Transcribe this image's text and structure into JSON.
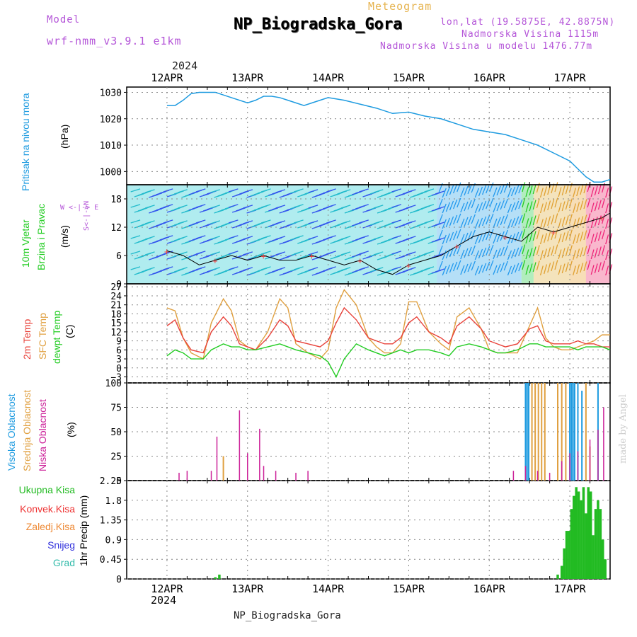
{
  "header": {
    "model_label": "Model",
    "model_name": "wrf-nmm_v3.9.1 e1km",
    "meteogram_label": "Meteogram",
    "station_title": "NP_Biogradska_Gora",
    "coords": "lon,lat (19.5875E, 42.8875N)",
    "elevation": "Nadmorska Visina 1115m",
    "model_elevation": "Nadmorska Visina u modelu 1476.77m",
    "year_top": "2024",
    "year_bottom": "2024",
    "footer_station": "NP_Biogradska_Gora",
    "signature": "made by Angel"
  },
  "axis_days": [
    "12APR",
    "13APR",
    "14APR",
    "15APR",
    "16APR",
    "17APR"
  ],
  "panel_labels": {
    "pressure": {
      "name": "Pritisak na nivou mora",
      "unit": "(hPa)"
    },
    "wind": {
      "name1": "10m Vjetar",
      "name2": "Brzina i Pravac",
      "unit": "(m/s)",
      "compass": "W <-|-> E",
      "compass_v": "S<-|->N"
    },
    "temp": {
      "name1": "2m Temp",
      "name2": "SFC Temp",
      "name3": "dewpt Temp",
      "unit": "(C)"
    },
    "cloud": {
      "name1": "Visoka Oblacnost",
      "name2": "Srednja Oblacnost",
      "name3": "Niska Oblacnost",
      "unit": "(%)"
    },
    "precip": {
      "unit": "1hr Precip (mm)",
      "legend": [
        "Ukupna Kisa",
        "Konvek.Kisa",
        "Zaledj.Kisa",
        "Snijeg",
        "Grad"
      ]
    }
  },
  "colors": {
    "pressure": "#1e9be0",
    "temp2m": "#e8423a",
    "sfc": "#e0a040",
    "dewpt": "#22cc22",
    "cloud_high": "#1e9be0",
    "cloud_mid": "#e0a040",
    "cloud_low": "#cc2299",
    "rain_total": "#22bb22",
    "rain_conv": "#ee3333",
    "freezing": "#ee8833",
    "snow": "#3333dd",
    "hail": "#33bbaa"
  },
  "chart_data": [
    {
      "type": "line",
      "name": "pressure",
      "x_days": [
        0,
        0.1,
        0.2,
        0.3,
        0.4,
        0.5,
        0.6,
        0.7,
        0.8,
        1.0,
        1.1,
        1.2,
        1.3,
        1.4,
        1.5,
        1.6,
        1.7,
        1.8,
        1.9,
        2.0,
        2.1,
        2.2,
        2.4,
        2.6,
        2.8,
        3.0,
        3.2,
        3.4,
        3.6,
        3.8,
        4.0,
        4.2,
        4.4,
        4.6,
        4.8,
        5.0,
        5.1,
        5.2,
        5.3,
        5.4,
        5.5
      ],
      "values": [
        1025,
        1025,
        1027,
        1029.5,
        1030,
        1030,
        1030,
        1029,
        1028,
        1026,
        1027,
        1028.5,
        1028.5,
        1028,
        1027,
        1026,
        1025,
        1026,
        1027,
        1028,
        1027.5,
        1027,
        1025.5,
        1024,
        1022,
        1022.5,
        1021,
        1020,
        1018,
        1016,
        1015,
        1014,
        1012,
        1010,
        1007,
        1004,
        1001,
        998,
        996,
        996,
        997
      ],
      "ylim": [
        995,
        1032
      ],
      "yticks": [
        1000,
        1010,
        1020,
        1030
      ]
    },
    {
      "type": "line",
      "name": "wind",
      "x_days": [
        0,
        0.2,
        0.4,
        0.6,
        0.8,
        1.0,
        1.2,
        1.4,
        1.6,
        1.8,
        2.0,
        2.2,
        2.4,
        2.6,
        2.8,
        3.0,
        3.2,
        3.4,
        3.6,
        3.8,
        4.0,
        4.2,
        4.4,
        4.6,
        4.8,
        5.0,
        5.2,
        5.4,
        5.5
      ],
      "values": [
        7,
        6,
        4,
        5,
        6,
        5,
        6,
        5,
        5,
        6,
        5,
        4,
        5,
        3,
        2,
        4,
        5,
        6,
        8,
        10,
        11,
        10,
        9,
        12,
        11,
        12,
        13,
        14,
        15
      ],
      "ylim": [
        0,
        21
      ],
      "yticks": [
        0,
        6,
        12,
        18
      ]
    },
    {
      "type": "line",
      "name": "temperature",
      "x_days": [
        0,
        0.1,
        0.2,
        0.3,
        0.45,
        0.55,
        0.7,
        0.8,
        0.9,
        1.0,
        1.1,
        1.25,
        1.4,
        1.5,
        1.6,
        1.75,
        1.9,
        2.0,
        2.1,
        2.2,
        2.35,
        2.5,
        2.6,
        2.7,
        2.8,
        2.9,
        3.0,
        3.1,
        3.25,
        3.4,
        3.5,
        3.6,
        3.75,
        3.9,
        4.0,
        4.1,
        4.2,
        4.35,
        4.5,
        4.6,
        4.7,
        4.8,
        4.9,
        5.0,
        5.1,
        5.2,
        5.3,
        5.4,
        5.5
      ],
      "t2m": [
        14,
        16,
        10,
        6,
        5,
        12,
        17,
        14,
        8,
        7,
        6,
        10,
        16,
        14,
        9,
        8,
        7,
        9,
        15,
        20,
        16,
        10,
        9,
        8,
        8,
        10,
        15,
        17,
        12,
        10,
        8,
        14,
        17,
        13,
        9,
        8,
        7,
        8,
        13,
        14,
        9,
        8,
        8,
        8,
        9,
        8,
        8,
        7,
        7
      ],
      "sfc": [
        20,
        19,
        10,
        5,
        3,
        15,
        23,
        19,
        9,
        7,
        6,
        12,
        23,
        20,
        8,
        5,
        3,
        6,
        20,
        26,
        21,
        10,
        7,
        5,
        5,
        8,
        22,
        22,
        12,
        8,
        6,
        17,
        20,
        13,
        6,
        5,
        5,
        5,
        14,
        20,
        10,
        7,
        6,
        6,
        7,
        8,
        9,
        11,
        11
      ],
      "dewpt": [
        4,
        6,
        5,
        3,
        3,
        6,
        8,
        7,
        7,
        6,
        6,
        7,
        8,
        7,
        6,
        5,
        4,
        2,
        -3,
        3,
        8,
        6,
        5,
        4,
        5,
        6,
        5,
        6,
        6,
        5,
        4,
        7,
        8,
        7,
        6,
        5,
        5,
        6,
        8,
        8,
        7,
        7,
        7,
        7,
        6,
        7,
        7,
        7,
        6
      ],
      "ylim": [
        -5,
        28
      ],
      "yticks": [
        -3,
        0,
        3,
        6,
        9,
        12,
        15,
        18,
        21,
        24,
        27
      ]
    },
    {
      "type": "bar",
      "name": "cloud_cover",
      "ylim": [
        0,
        100
      ],
      "yticks": [
        0,
        25,
        50,
        75,
        100
      ],
      "high": [
        [
          4.45,
          100
        ],
        [
          4.47,
          100
        ],
        [
          4.49,
          100
        ],
        [
          5.0,
          100
        ],
        [
          5.02,
          100
        ],
        [
          5.04,
          100
        ],
        [
          5.06,
          100
        ],
        [
          5.1,
          100
        ],
        [
          5.15,
          92
        ],
        [
          5.35,
          100
        ]
      ],
      "mid": [
        [
          0.7,
          25
        ],
        [
          4.53,
          100
        ],
        [
          4.57,
          100
        ],
        [
          4.61,
          100
        ],
        [
          4.65,
          100
        ],
        [
          4.69,
          100
        ],
        [
          4.85,
          100
        ],
        [
          4.9,
          100
        ],
        [
          4.95,
          100
        ],
        [
          5.2,
          100
        ],
        [
          5.25,
          35
        ]
      ],
      "low": [
        [
          0.15,
          8
        ],
        [
          0.25,
          10
        ],
        [
          0.55,
          10
        ],
        [
          0.62,
          45
        ],
        [
          0.9,
          72
        ],
        [
          1.0,
          28
        ],
        [
          1.15,
          53
        ],
        [
          1.2,
          15
        ],
        [
          1.35,
          10
        ],
        [
          1.6,
          8
        ],
        [
          1.75,
          10
        ],
        [
          4.3,
          10
        ],
        [
          4.45,
          15
        ],
        [
          4.6,
          10
        ],
        [
          4.75,
          8
        ],
        [
          4.9,
          20
        ],
        [
          5.0,
          28
        ],
        [
          5.1,
          30
        ],
        [
          5.25,
          42
        ],
        [
          5.35,
          52
        ],
        [
          5.42,
          75
        ]
      ]
    },
    {
      "type": "bar",
      "name": "precipitation",
      "ylim": [
        0,
        2.25
      ],
      "yticks": [
        0,
        0.45,
        0.9,
        1.35,
        1.8,
        2.25
      ],
      "total": [
        [
          0.6,
          0.04
        ],
        [
          0.65,
          0.1
        ],
        [
          4.85,
          0.1
        ],
        [
          4.9,
          0.3
        ],
        [
          4.93,
          0.7
        ],
        [
          4.96,
          1.1
        ],
        [
          4.99,
          1.1
        ],
        [
          5.02,
          1.6
        ],
        [
          5.05,
          1.9
        ],
        [
          5.08,
          2.1
        ],
        [
          5.11,
          2.0
        ],
        [
          5.14,
          1.8
        ],
        [
          5.17,
          2.1
        ],
        [
          5.2,
          1.5
        ],
        [
          5.23,
          2.1
        ],
        [
          5.26,
          2.0
        ],
        [
          5.29,
          1.0
        ],
        [
          5.32,
          1.6
        ],
        [
          5.35,
          1.8
        ],
        [
          5.38,
          1.6
        ],
        [
          5.41,
          0.9
        ],
        [
          5.44,
          0.45
        ]
      ]
    }
  ]
}
